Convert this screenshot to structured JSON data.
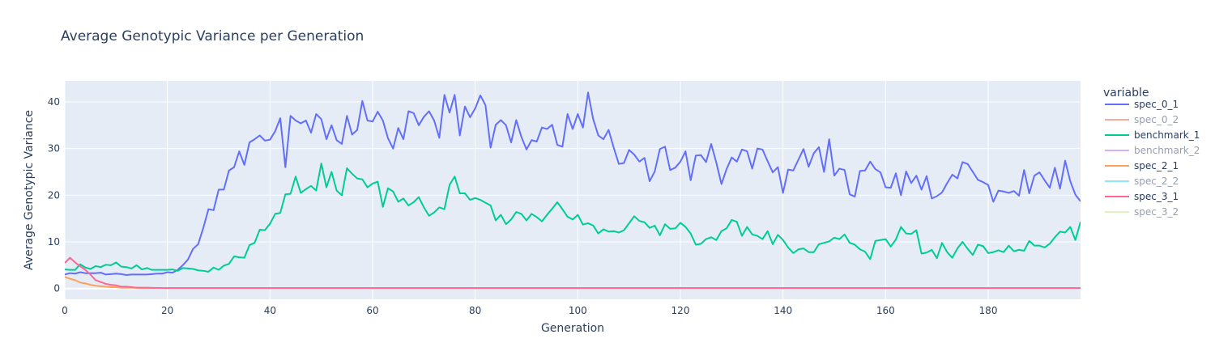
{
  "chart_data": {
    "type": "line",
    "title": "Average Genotypic Variance per Generation",
    "xlabel": "Generation",
    "ylabel": "Average Genotypic Variance",
    "xlim": [
      0,
      198
    ],
    "ylim": [
      -2.3,
      44.5
    ],
    "xticks": [
      0,
      20,
      40,
      60,
      80,
      100,
      120,
      140,
      160,
      180
    ],
    "yticks": [
      0,
      10,
      20,
      30,
      40
    ],
    "grid": true,
    "legend": {
      "title": "variable",
      "placement": "right"
    },
    "colors": {
      "plot_bg": "#E5ECF6",
      "grid": "#ffffff",
      "text": "#2a3f5f"
    },
    "series": [
      {
        "name": "spec_0_1",
        "color": "#636efa",
        "visible": true,
        "values": [
          3.0,
          3.3,
          3.2,
          3.5,
          3.3,
          3.3,
          3.3,
          3.4,
          3.0,
          3.1,
          3.2,
          3.1,
          2.9,
          3.0,
          3.0,
          3.0,
          3.0,
          3.1,
          3.2,
          3.2,
          3.5,
          3.4,
          4.0,
          5.0,
          6.2,
          8.5,
          9.5,
          13.0,
          17.0,
          16.8,
          21.2,
          21.2,
          25.3,
          26.0,
          29.4,
          26.5,
          31.3,
          32.0,
          32.8,
          31.7,
          31.9,
          33.7,
          36.5,
          26.0,
          37.0,
          36.0,
          35.4,
          36.0,
          33.4,
          37.4,
          36.3,
          32.0,
          35.0,
          31.8,
          31.0,
          37.0,
          33.0,
          34.0,
          40.2,
          36.0,
          35.8,
          37.9,
          36.0,
          32.2,
          30.0,
          34.4,
          32.0,
          38.0,
          37.6,
          35.0,
          36.8,
          38.0,
          36.0,
          32.3,
          41.5,
          37.7,
          41.5,
          32.8,
          39.0,
          36.7,
          38.6,
          41.4,
          39.3,
          30.2,
          35.1,
          36.1,
          35.0,
          31.3,
          36.1,
          32.5,
          29.8,
          31.8,
          31.5,
          34.5,
          34.2,
          35.1,
          30.8,
          30.4,
          37.4,
          34.2,
          37.4,
          34.5,
          42.0,
          36.3,
          32.8,
          32.0,
          34.0,
          30.2,
          26.7,
          26.9,
          29.7,
          28.7,
          27.2,
          28.0,
          23.0,
          25.1,
          29.9,
          30.4,
          25.4,
          25.9,
          27.2,
          29.4,
          23.2,
          28.5,
          28.6,
          27.1,
          31.0,
          27.0,
          22.4,
          25.6,
          28.1,
          27.2,
          29.8,
          29.4,
          25.7,
          30.0,
          29.8,
          27.3,
          24.9,
          26.0,
          20.5,
          25.5,
          25.3,
          27.6,
          29.9,
          26.1,
          29.0,
          30.3,
          25.0,
          32.0,
          24.2,
          25.7,
          25.4,
          20.2,
          19.7,
          25.2,
          25.3,
          27.2,
          25.6,
          24.9,
          21.7,
          21.6,
          24.7,
          20.0,
          25.1,
          22.6,
          24.2,
          21.2,
          24.1,
          19.3,
          19.8,
          20.6,
          22.6,
          24.4,
          23.6,
          27.1,
          26.7,
          25.0,
          23.3,
          22.8,
          22.2,
          18.6,
          21.0,
          20.8,
          20.5,
          20.9,
          19.9,
          25.4,
          20.4,
          24.2,
          24.9,
          23.2,
          21.6,
          25.9,
          21.4,
          27.4,
          23.0,
          20.1,
          18.7
        ]
      },
      {
        "name": "spec_0_2",
        "color": "#EF553B",
        "visible": false,
        "values": []
      },
      {
        "name": "benchmark_1",
        "color": "#00cc96",
        "visible": true,
        "values": [
          4.1,
          4.0,
          4.0,
          5.2,
          4.5,
          4.2,
          4.8,
          4.6,
          5.1,
          5.0,
          5.6,
          4.7,
          4.6,
          4.3,
          5.0,
          4.1,
          4.4,
          4.0,
          4.0,
          4.0,
          4.0,
          4.1,
          3.8,
          4.4,
          4.3,
          4.2,
          3.9,
          3.8,
          3.6,
          4.5,
          4.0,
          4.9,
          5.3,
          6.9,
          6.7,
          6.6,
          9.3,
          9.8,
          12.6,
          12.5,
          13.9,
          16.0,
          16.2,
          20.2,
          20.3,
          24.0,
          20.5,
          21.3,
          22.0,
          21.0,
          26.8,
          21.7,
          25.0,
          21.0,
          20.0,
          25.8,
          24.6,
          23.6,
          23.4,
          21.7,
          22.5,
          22.9,
          17.5,
          21.5,
          20.8,
          18.6,
          19.3,
          17.8,
          18.5,
          19.6,
          17.4,
          15.6,
          16.3,
          17.4,
          17.0,
          22.2,
          24.0,
          20.4,
          20.4,
          19.0,
          19.4,
          19.0,
          18.4,
          17.8,
          14.6,
          15.8,
          13.8,
          14.8,
          16.4,
          16.0,
          14.6,
          16.0,
          15.3,
          14.4,
          15.8,
          17.1,
          18.5,
          17.0,
          15.4,
          14.8,
          15.8,
          13.7,
          14.0,
          13.5,
          11.8,
          12.7,
          12.2,
          12.3,
          12.0,
          12.5,
          14.0,
          15.5,
          14.5,
          14.2,
          13.0,
          13.5,
          11.4,
          13.8,
          12.8,
          12.9,
          14.1,
          13.2,
          11.8,
          9.4,
          9.6,
          10.6,
          11.0,
          10.4,
          12.3,
          12.9,
          14.7,
          14.3,
          11.3,
          13.2,
          11.6,
          11.3,
          10.6,
          12.3,
          9.5,
          11.5,
          10.4,
          8.8,
          7.6,
          8.4,
          8.6,
          7.8,
          7.8,
          9.5,
          9.8,
          10.1,
          10.9,
          10.6,
          11.6,
          9.8,
          9.4,
          8.4,
          7.9,
          6.3,
          10.2,
          10.4,
          10.6,
          9.0,
          10.5,
          13.2,
          11.8,
          11.7,
          12.5,
          7.5,
          7.7,
          8.3,
          6.5,
          9.8,
          7.8,
          6.6,
          8.6,
          10.0,
          8.5,
          7.2,
          9.4,
          9.1,
          7.6,
          7.8,
          8.2,
          7.8,
          9.2,
          8.0,
          8.3,
          8.1,
          10.2,
          9.2,
          9.2,
          8.8,
          9.6,
          11.0,
          12.2,
          12.0,
          13.2,
          10.4,
          14.3
        ]
      },
      {
        "name": "benchmark_2",
        "color": "#ab63fa",
        "visible": false,
        "values": []
      },
      {
        "name": "spec_2_1",
        "color": "#FFA15A",
        "visible": true,
        "values": [
          2.5,
          2.1,
          1.8,
          1.3,
          1.1,
          0.8,
          0.6,
          0.5,
          0.4,
          0.3,
          0.3,
          0.2,
          0.2,
          0.2,
          0.15,
          0.1,
          0.1,
          0.1,
          0.1,
          0.1,
          0.1,
          0.1,
          0.1,
          0.1,
          0.1,
          0.1,
          0.1,
          0.1,
          0.1,
          0.1,
          0.1,
          0.1,
          0.1,
          0.1,
          0.1,
          0.1,
          0.1,
          0.1,
          0.1,
          0.1,
          0.1,
          0.1,
          0.1,
          0.1,
          0.1,
          0.1,
          0.1,
          0.1,
          0.1,
          0.1,
          0.1,
          0.1,
          0.1,
          0.1,
          0.1,
          0.1,
          0.1,
          0.1,
          0.1,
          0.1,
          0.1,
          0.1,
          0.1,
          0.1,
          0.1,
          0.1,
          0.1,
          0.1,
          0.1,
          0.1,
          0.1,
          0.1,
          0.1,
          0.1,
          0.1,
          0.1,
          0.1,
          0.1,
          0.1,
          0.1,
          0.1,
          0.1,
          0.1,
          0.1,
          0.1,
          0.1,
          0.1,
          0.1,
          0.1,
          0.1,
          0.1,
          0.1,
          0.1,
          0.1,
          0.1,
          0.1,
          0.1,
          0.1,
          0.1,
          0.1,
          0.1,
          0.1,
          0.1,
          0.1,
          0.1,
          0.1,
          0.1,
          0.1,
          0.1,
          0.1,
          0.1,
          0.1,
          0.1,
          0.1,
          0.1,
          0.1,
          0.1,
          0.1,
          0.1,
          0.1,
          0.1,
          0.1,
          0.1,
          0.1,
          0.1,
          0.1,
          0.1,
          0.1,
          0.1,
          0.1,
          0.1,
          0.1,
          0.1,
          0.1,
          0.1,
          0.1,
          0.1,
          0.1,
          0.1,
          0.1,
          0.1,
          0.1,
          0.1,
          0.1,
          0.1,
          0.1,
          0.1,
          0.1,
          0.1,
          0.1,
          0.1,
          0.1,
          0.1,
          0.1,
          0.1,
          0.1,
          0.1,
          0.1,
          0.1,
          0.1,
          0.1,
          0.1,
          0.1,
          0.1,
          0.1,
          0.1,
          0.1,
          0.1,
          0.1,
          0.1,
          0.1,
          0.1,
          0.1,
          0.1,
          0.1,
          0.1,
          0.1,
          0.1,
          0.1,
          0.1,
          0.1,
          0.1,
          0.1,
          0.1,
          0.1,
          0.1,
          0.1,
          0.1,
          0.1,
          0.1,
          0.1,
          0.1,
          0.1,
          0.1,
          0.1,
          0.1,
          0.1,
          0.1,
          0.1,
          0.1,
          0.1
        ]
      },
      {
        "name": "spec_2_2",
        "color": "#19d3f3",
        "visible": false,
        "values": []
      },
      {
        "name": "spec_3_1",
        "color": "#FF6692",
        "visible": true,
        "values": [
          5.5,
          6.6,
          5.6,
          4.8,
          4.0,
          3.0,
          1.8,
          1.4,
          1.0,
          0.8,
          0.7,
          0.4,
          0.4,
          0.3,
          0.2,
          0.2,
          0.2,
          0.15,
          0.15,
          0.1,
          0.1,
          0.1,
          0.1,
          0.1,
          0.1,
          0.1,
          0.1,
          0.1,
          0.1,
          0.1,
          0.1,
          0.1,
          0.1,
          0.1,
          0.1,
          0.1,
          0.1,
          0.1,
          0.1,
          0.1,
          0.1,
          0.1,
          0.1,
          0.1,
          0.1,
          0.1,
          0.1,
          0.1,
          0.1,
          0.1,
          0.1,
          0.1,
          0.1,
          0.1,
          0.1,
          0.1,
          0.1,
          0.1,
          0.1,
          0.1,
          0.1,
          0.1,
          0.1,
          0.1,
          0.1,
          0.1,
          0.1,
          0.1,
          0.1,
          0.1,
          0.1,
          0.1,
          0.1,
          0.1,
          0.1,
          0.1,
          0.1,
          0.1,
          0.1,
          0.1,
          0.1,
          0.1,
          0.1,
          0.1,
          0.1,
          0.1,
          0.1,
          0.1,
          0.1,
          0.1,
          0.1,
          0.1,
          0.1,
          0.1,
          0.1,
          0.1,
          0.1,
          0.1,
          0.1,
          0.1,
          0.1,
          0.1,
          0.1,
          0.1,
          0.1,
          0.1,
          0.1,
          0.1,
          0.1,
          0.1,
          0.1,
          0.1,
          0.1,
          0.1,
          0.1,
          0.1,
          0.1,
          0.1,
          0.1,
          0.1,
          0.1,
          0.1,
          0.1,
          0.1,
          0.1,
          0.1,
          0.1,
          0.1,
          0.1,
          0.1,
          0.1,
          0.1,
          0.1,
          0.1,
          0.1,
          0.1,
          0.1,
          0.1,
          0.1,
          0.1,
          0.1,
          0.1,
          0.1,
          0.1,
          0.1,
          0.1,
          0.1,
          0.1,
          0.1,
          0.1,
          0.1,
          0.1,
          0.1,
          0.1,
          0.1,
          0.1,
          0.1,
          0.1,
          0.1,
          0.1,
          0.1,
          0.1,
          0.1,
          0.1,
          0.1,
          0.1,
          0.1,
          0.1,
          0.1,
          0.1,
          0.1,
          0.1,
          0.1,
          0.1,
          0.1,
          0.1,
          0.1,
          0.1,
          0.1,
          0.1,
          0.1,
          0.1,
          0.1,
          0.1,
          0.1,
          0.1,
          0.1,
          0.1,
          0.1,
          0.1,
          0.1,
          0.1,
          0.1,
          0.1,
          0.1,
          0.1,
          0.1,
          0.1,
          0.1,
          0.1,
          0.1,
          0.1,
          0.1
        ]
      },
      {
        "name": "spec_3_2",
        "color": "#B6E880",
        "visible": false,
        "values": []
      }
    ]
  }
}
